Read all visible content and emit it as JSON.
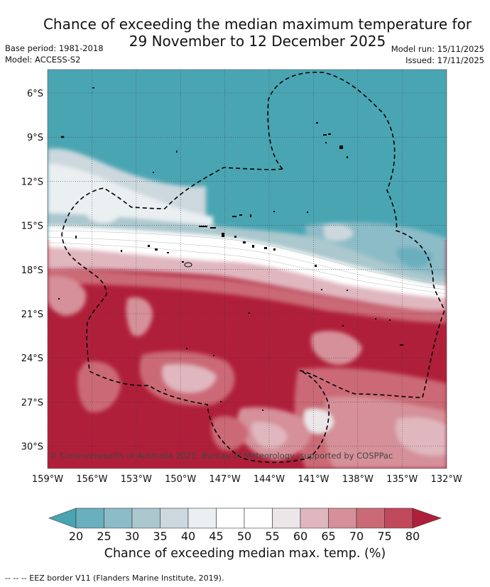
{
  "title": {
    "line1": "Chance of exceeding the median maximum temperature for",
    "line2": "29 November to 12 December 2025"
  },
  "meta": {
    "base_period": "Base period: 1981-2018",
    "model": "Model: ACCESS-S2",
    "model_run": "Model run: 15/11/2025",
    "issued": "Issued: 17/11/2025"
  },
  "map": {
    "lat_ticks": [
      "6°S",
      "9°S",
      "12°S",
      "15°S",
      "18°S",
      "21°S",
      "24°S",
      "27°S",
      "30°S"
    ],
    "lon_ticks": [
      "159°W",
      "156°W",
      "153°W",
      "150°W",
      "147°W",
      "144°W",
      "141°W",
      "138°W",
      "135°W",
      "132°W"
    ],
    "copyright": "© Commonwealth of Australia 2025, Bureau of Meteorology, supported by COSPPac"
  },
  "colorbar": {
    "ticks": [
      "20",
      "25",
      "30",
      "35",
      "40",
      "45",
      "50",
      "55",
      "60",
      "65",
      "70",
      "75",
      "80"
    ],
    "colors": [
      "#4aa5b3",
      "#6aafbd",
      "#8cbcc7",
      "#abc8ce",
      "#ccd8dd",
      "#eaeff2",
      "#ffffff",
      "#ffffff",
      "#ebe7e9",
      "#e0b7bf",
      "#d5909a",
      "#cb6a76",
      "#c04a5b",
      "#b01f3a"
    ],
    "label": "Chance of exceeding median max. temp. (%)"
  },
  "footer": "--  --  -- EEZ border V11 (Flanders Marine Institute, 2019)."
}
